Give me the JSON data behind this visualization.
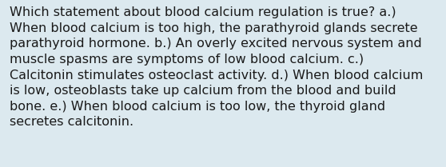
{
  "lines": [
    "Which statement about blood calcium regulation is true? a.)",
    "When blood calcium is too high, the parathyroid glands secrete",
    "parathyroid hormone. b.) An overly excited nervous system and",
    "muscle spasms are symptoms of low blood calcium. c.)",
    "Calcitonin stimulates osteoclast activity. d.) When blood calcium",
    "is low, osteoblasts take up calcium from the blood and build",
    "bone. e.) When blood calcium is too low, the thyroid gland",
    "secretes calcitonin."
  ],
  "background_color": "#dce9ef",
  "text_color": "#1a1a1a",
  "font_size": 11.5,
  "fig_width": 5.58,
  "fig_height": 2.09,
  "dpi": 100
}
